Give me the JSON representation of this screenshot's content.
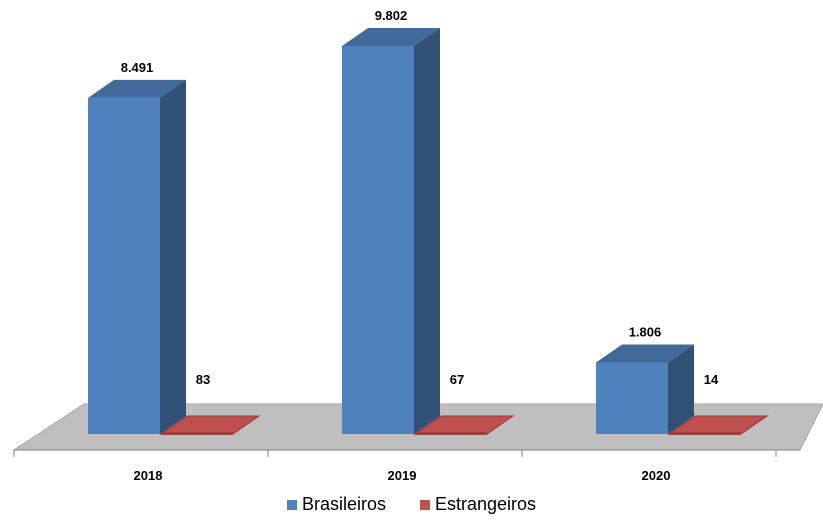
{
  "chart_data": {
    "type": "bar",
    "categories": [
      "2018",
      "2019",
      "2020"
    ],
    "series": [
      {
        "name": "Brasileiros",
        "values": [
          8491,
          9802,
          1806
        ],
        "labels": [
          "8.491",
          "9.802",
          "1.806"
        ],
        "color": "#4F81BD"
      },
      {
        "name": "Estrangeiros",
        "values": [
          83,
          67,
          14
        ],
        "labels": [
          "83",
          "67",
          "14"
        ],
        "color": "#C0504D"
      }
    ],
    "title": "",
    "xlabel": "",
    "ylabel": "",
    "ylim": [
      0,
      9802
    ],
    "grid": false,
    "legend_position": "bottom",
    "style": "3d-column"
  }
}
